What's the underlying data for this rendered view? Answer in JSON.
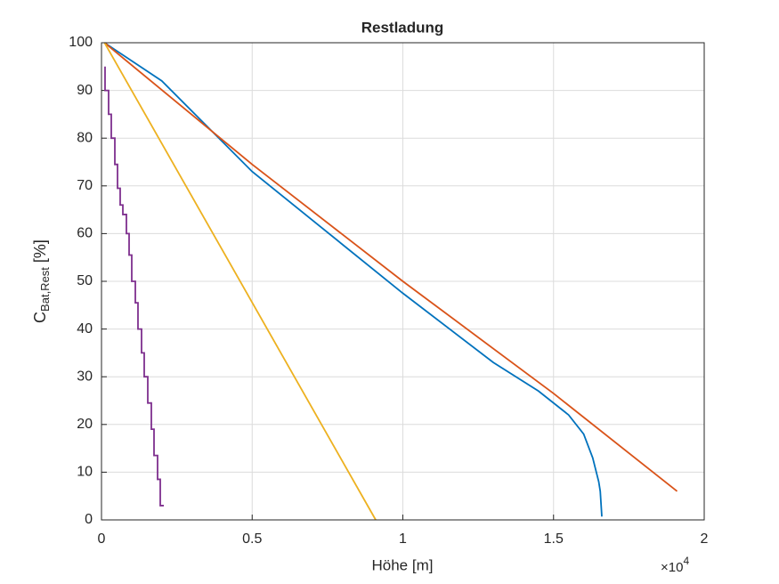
{
  "chart_data": {
    "type": "line",
    "title": "Restladung",
    "xlabel": "Höhe [m]",
    "x_multiplier": {
      "base": "×10",
      "exponent": "4"
    },
    "ylabel": {
      "main": "C",
      "subscript": "Bat,Rest",
      "unit": " [%]"
    },
    "xlim": [
      0,
      20000
    ],
    "xticks": [
      {
        "value": 0,
        "label": "0"
      },
      {
        "value": 5000,
        "label": "0.5"
      },
      {
        "value": 10000,
        "label": "1"
      },
      {
        "value": 15000,
        "label": "1.5"
      },
      {
        "value": 20000,
        "label": "2"
      }
    ],
    "ylim": [
      0,
      100
    ],
    "yticks": [
      0,
      10,
      20,
      30,
      40,
      50,
      60,
      70,
      80,
      90,
      100
    ],
    "grid": true,
    "series": [
      {
        "color": "#0072BD",
        "x": [
          100,
          2000,
          5000,
          10000,
          13000,
          14500,
          15500,
          16000,
          16300,
          16500,
          16550,
          16600,
          16600
        ],
        "values": [
          100,
          92,
          73,
          47.5,
          33,
          27,
          22,
          18,
          13,
          8,
          6,
          1,
          0.7
        ]
      },
      {
        "color": "#D95319",
        "x": [
          100,
          5000,
          10000,
          15000,
          19100
        ],
        "values": [
          100,
          74.5,
          50,
          26.5,
          6
        ]
      },
      {
        "color": "#EDB120",
        "x": [
          100,
          9100
        ],
        "values": [
          100,
          0
        ]
      },
      {
        "color": "#7E2F8E",
        "x": [
          118,
          118,
          236,
          236,
          325,
          325,
          443,
          443,
          532,
          532,
          620,
          620,
          709,
          709,
          827,
          827,
          916,
          916,
          1004,
          1004,
          1123,
          1123,
          1211,
          1211,
          1329,
          1329,
          1418,
          1418,
          1536,
          1536,
          1654,
          1654,
          1743,
          1743,
          1861,
          1861,
          1950,
          1950,
          2068
        ],
        "values": [
          95,
          90,
          90,
          85,
          85,
          80,
          80,
          74.5,
          74.5,
          69.5,
          69.5,
          66,
          66,
          64,
          64,
          60,
          60,
          55.5,
          55.5,
          50,
          50,
          45.5,
          45.5,
          40,
          40,
          35,
          35,
          30,
          30,
          24.5,
          24.5,
          19,
          19,
          13.5,
          13.5,
          8.5,
          8.5,
          3,
          3
        ]
      }
    ]
  }
}
